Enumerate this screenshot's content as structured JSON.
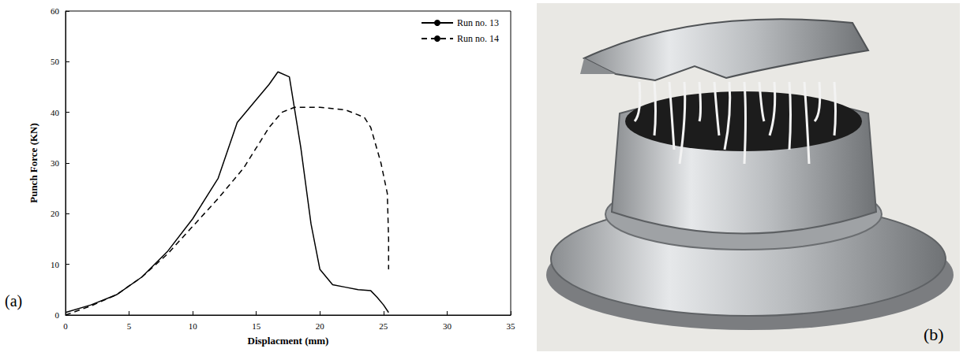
{
  "chart_data": {
    "type": "line",
    "annotation": "(a)",
    "x_label": "Displacment (mm)",
    "y_label": "Punch Force (KN)",
    "xlim": [
      0,
      35
    ],
    "xticks": [
      0,
      5,
      10,
      15,
      20,
      25,
      30,
      35
    ],
    "ylim": [
      0,
      60
    ],
    "yticks": [
      0,
      10,
      20,
      30,
      40,
      50,
      60
    ],
    "grid": false,
    "legend": "upper right",
    "series": [
      {
        "name": "Run no. 13",
        "color": "#000000",
        "line_style": "solid",
        "x": [
          0,
          2,
          4,
          6,
          8,
          10,
          12,
          13.5,
          15,
          16,
          16.7,
          17.6,
          18.5,
          19.3,
          20,
          21,
          22,
          23,
          24,
          24.5,
          25,
          25.4
        ],
        "values": [
          0.5,
          2,
          4,
          7.5,
          12.5,
          19,
          27,
          38,
          42.5,
          45.5,
          48,
          47,
          33,
          18,
          9,
          6,
          5.5,
          5,
          4.8,
          3.5,
          2,
          0.5
        ]
      },
      {
        "name": "Run no. 14",
        "color": "#000000",
        "line_style": "dashed",
        "x": [
          0,
          2,
          4,
          6,
          8,
          10,
          12,
          14,
          15,
          16,
          17,
          18,
          20,
          22,
          23.5,
          24,
          24.8,
          25.3,
          25.4,
          25.4
        ],
        "values": [
          0,
          1.8,
          4,
          7.5,
          12,
          17.5,
          23,
          29,
          33,
          37,
          40,
          41,
          41,
          40.5,
          39,
          37,
          30,
          24,
          15,
          9
        ]
      }
    ]
  },
  "photo": {
    "label": "(b)"
  }
}
